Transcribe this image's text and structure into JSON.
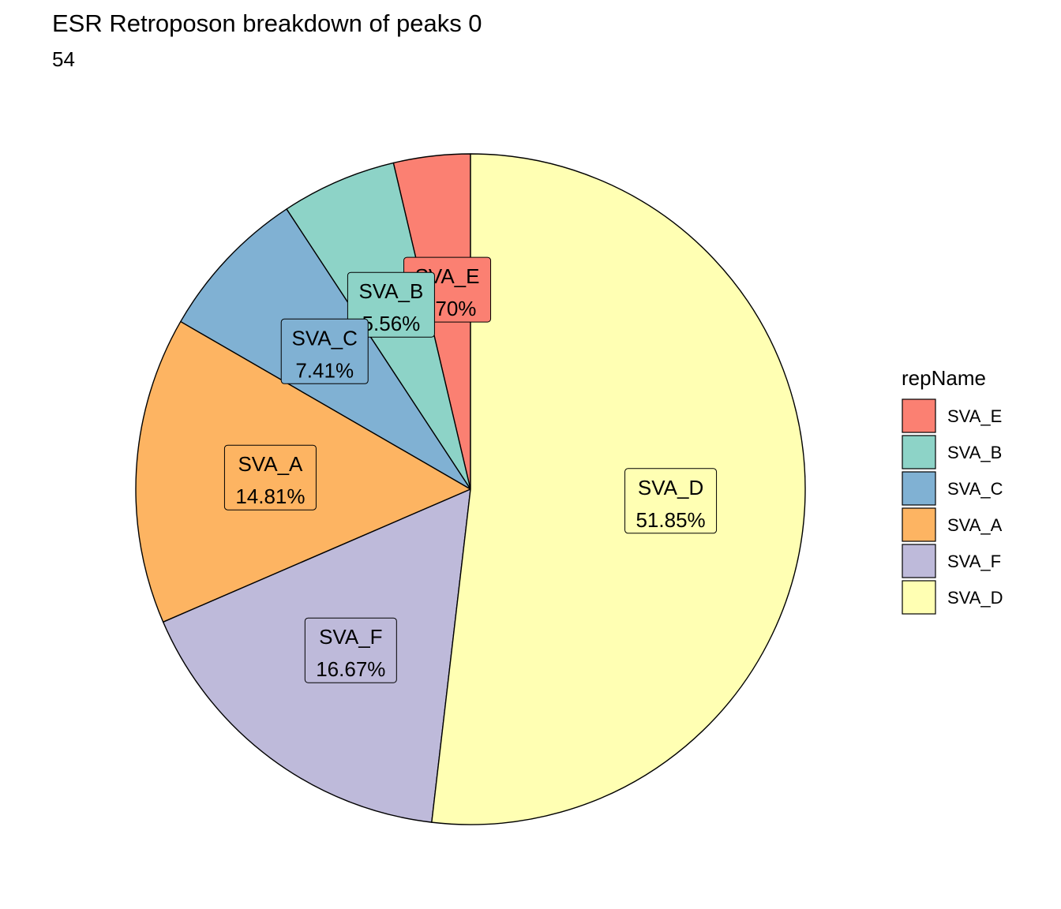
{
  "chart_data": {
    "type": "pie",
    "title": "ESR Retroposon breakdown of peaks 0",
    "subtitle": "54",
    "legend_title": "repName",
    "legend_position": "right",
    "slices": [
      {
        "name": "SVA_E",
        "value": 3.7,
        "label": "3.70%",
        "color": "#FB8072"
      },
      {
        "name": "SVA_B",
        "value": 5.56,
        "label": "5.56%",
        "color": "#8DD3C7"
      },
      {
        "name": "SVA_C",
        "value": 7.41,
        "label": "7.41%",
        "color": "#80B1D3"
      },
      {
        "name": "SVA_A",
        "value": 14.81,
        "label": "14.81%",
        "color": "#FDB462"
      },
      {
        "name": "SVA_F",
        "value": 16.67,
        "label": "16.67%",
        "color": "#BEBADA"
      },
      {
        "name": "SVA_D",
        "value": 51.85,
        "label": "51.85%",
        "color": "#FFFFB3"
      }
    ],
    "direction": "counterclockwise",
    "start_angle": "12 o'clock"
  }
}
